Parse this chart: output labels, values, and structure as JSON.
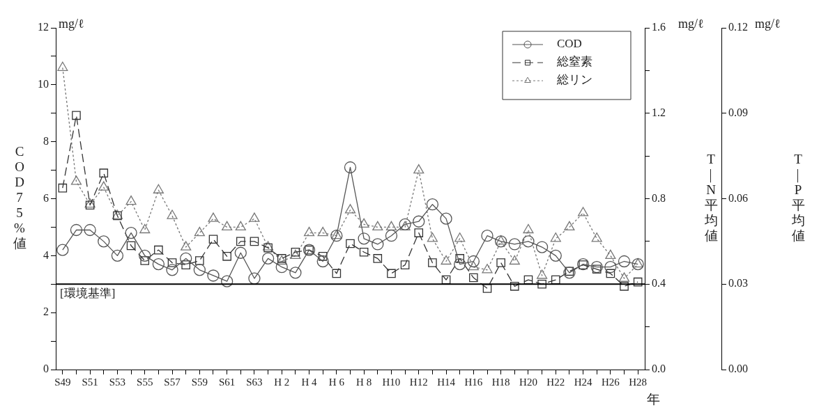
{
  "chart_data": {
    "type": "line",
    "categories": [
      "S49",
      null,
      "S51",
      null,
      "S53",
      null,
      "S55",
      null,
      "S57",
      null,
      "S59",
      null,
      "S61",
      null,
      "S63",
      null,
      "H 2",
      null,
      "H 4",
      null,
      "H 6",
      null,
      "H 8",
      null,
      "H10",
      null,
      "H12",
      null,
      "H14",
      null,
      "H16",
      null,
      "H18",
      null,
      "H20",
      null,
      "H22",
      null,
      "H24",
      null,
      "H26",
      null,
      "H28"
    ],
    "series": [
      {
        "name": "COD",
        "color": "#555555",
        "marker": "circle",
        "line_style": "solid",
        "axis": "y",
        "values": [
          4.2,
          4.9,
          4.9,
          4.5,
          4.0,
          4.8,
          4.0,
          3.7,
          3.5,
          3.9,
          3.5,
          3.3,
          3.1,
          4.1,
          3.2,
          3.9,
          3.6,
          3.4,
          4.2,
          3.8,
          4.7,
          7.1,
          4.6,
          4.4,
          4.7,
          5.1,
          5.2,
          5.8,
          5.3,
          3.7,
          3.8,
          4.7,
          4.5,
          4.4,
          4.5,
          4.3,
          4.0,
          3.4,
          3.7,
          3.6,
          3.6,
          3.8,
          3.7
        ]
      },
      {
        "name": "総窒素",
        "color": "#333333",
        "marker": "square",
        "line_style": "dashed",
        "axis": "y2",
        "values": [
          0.85,
          1.19,
          0.77,
          0.92,
          0.72,
          0.58,
          0.51,
          0.56,
          0.5,
          0.49,
          0.51,
          0.61,
          0.53,
          0.6,
          0.6,
          0.57,
          0.52,
          0.55,
          0.56,
          0.53,
          0.45,
          0.59,
          0.55,
          0.52,
          0.45,
          0.49,
          0.64,
          0.5,
          0.42,
          0.52,
          0.43,
          0.38,
          0.5,
          0.39,
          0.42,
          0.4,
          0.42,
          0.46,
          0.49,
          0.47,
          0.45,
          0.39,
          0.41
        ]
      },
      {
        "name": "総リン",
        "color": "#777777",
        "marker": "triangle",
        "line_style": "dotted",
        "axis": "y3",
        "values": [
          0.106,
          0.066,
          0.058,
          0.064,
          0.054,
          0.059,
          0.049,
          0.063,
          0.054,
          0.043,
          0.048,
          0.053,
          0.05,
          0.05,
          0.053,
          0.043,
          0.038,
          0.04,
          0.048,
          0.048,
          0.047,
          0.056,
          0.051,
          0.05,
          0.05,
          0.05,
          0.07,
          0.046,
          0.038,
          0.046,
          0.036,
          0.035,
          0.045,
          0.038,
          0.049,
          0.033,
          0.046,
          0.05,
          0.055,
          0.046,
          0.04,
          0.032,
          0.037
        ]
      }
    ],
    "xlabel": "年",
    "ylabel": "COD75%値",
    "y2label": "T—N平均値",
    "y3label": "T—P平均値",
    "ylim": [
      0,
      12
    ],
    "yticks": [
      0,
      {
        "value": 1,
        "label": null
      },
      2,
      {
        "value": 3,
        "label": null
      },
      4,
      {
        "value": 5,
        "label": null
      },
      6,
      {
        "value": 7,
        "label": null
      },
      8,
      {
        "value": 9,
        "label": null
      },
      10,
      {
        "value": 11,
        "label": null
      },
      12
    ],
    "y2lim": [
      0,
      1.6
    ],
    "y2ticks": [
      {
        "value": 0,
        "label": "0.0"
      },
      {
        "value": 0.2,
        "label": null
      },
      0.4,
      {
        "value": 0.6,
        "label": null
      },
      0.8,
      {
        "value": 1.0,
        "label": null
      },
      1.2,
      {
        "value": 1.4,
        "label": null
      },
      1.6
    ],
    "y3lim": [
      0,
      0.12
    ],
    "y3ticks": [
      {
        "value": 0,
        "label": "0.00"
      },
      0.03,
      {
        "value": 0.06,
        "label": "0.06"
      },
      0.09,
      0.12
    ],
    "ref_lines": [
      {
        "axis": "y",
        "value": 3,
        "label": "[環境基準]",
        "color": "#000000"
      }
    ],
    "annotations": [
      "mg/ℓ",
      "mg/ℓ",
      "mg/ℓ"
    ],
    "legend": "top right",
    "grid": false
  }
}
